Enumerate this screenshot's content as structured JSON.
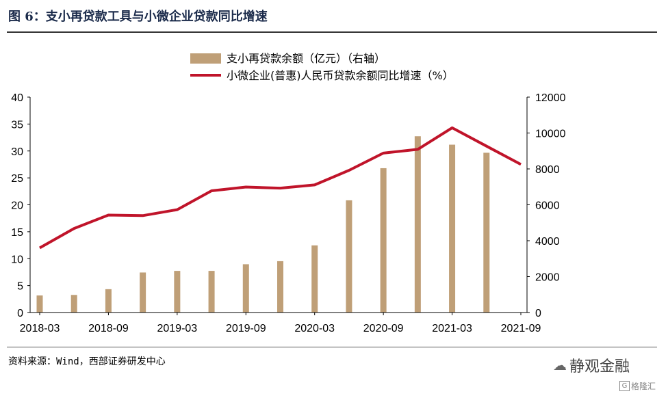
{
  "figure": {
    "title": "图 6：支小再贷款工具与小微企业贷款同比增速",
    "source": "资料来源：Wind，西部证券研发中心",
    "watermark": "静观金融",
    "watermark_icon": "wechat-icon",
    "logo_text": "格隆汇",
    "logo_icon": "g-logo-icon"
  },
  "chart_data": {
    "type": "bar+line",
    "x_ticks": [
      "2018-03",
      "2018-09",
      "2019-03",
      "2019-09",
      "2020-03",
      "2020-09",
      "2021-03",
      "2021-09"
    ],
    "legend_position": "top-center",
    "grid": false,
    "left_axis": {
      "ylim": [
        0,
        40
      ],
      "ticks": [
        0,
        5,
        10,
        15,
        20,
        25,
        30,
        35,
        40
      ]
    },
    "right_axis": {
      "ylim": [
        0,
        12000
      ],
      "ticks": [
        0,
        2000,
        4000,
        6000,
        8000,
        10000,
        12000
      ]
    },
    "series": [
      {
        "name": "支小再贷款余额（亿元）（右轴）",
        "kind": "bar",
        "axis": "right",
        "color": "#bf9f77",
        "x": [
          "2018-03",
          "2018-06",
          "2018-09",
          "2018-12",
          "2019-03",
          "2019-06",
          "2019-09",
          "2019-12",
          "2020-03",
          "2020-06",
          "2020-09",
          "2020-12",
          "2021-03",
          "2021-06"
        ],
        "values": [
          950,
          980,
          1300,
          2230,
          2320,
          2320,
          2690,
          2860,
          3740,
          6250,
          8040,
          9820,
          9350,
          8900
        ]
      },
      {
        "name": "小微企业(普惠)人民币贷款余额同比增速（%）",
        "kind": "line",
        "axis": "left",
        "color": "#c0142a",
        "x": [
          "2018-03",
          "2018-06",
          "2018-09",
          "2018-12",
          "2019-03",
          "2019-06",
          "2019-09",
          "2019-12",
          "2020-03",
          "2020-06",
          "2020-09",
          "2020-12",
          "2021-03",
          "2021-06",
          "2021-09"
        ],
        "values": [
          12.0,
          15.6,
          18.1,
          18.0,
          19.1,
          22.6,
          23.3,
          23.1,
          23.7,
          26.4,
          29.6,
          30.3,
          34.3,
          30.9,
          27.5
        ]
      }
    ]
  }
}
